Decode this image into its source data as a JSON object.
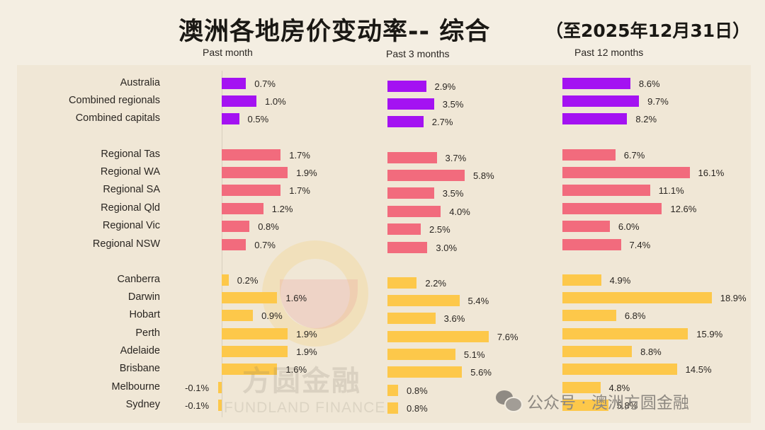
{
  "title": {
    "main": "澳洲各地房价变动率-- 综合",
    "sub": "（至2025年12月31日）"
  },
  "columns": [
    "Past month",
    "Past 3 months",
    "Past 12 months"
  ],
  "colors": {
    "summary": "#a412f2",
    "regional": "#f26b7d",
    "capital": "#fdc84a",
    "background": "#f4eee2",
    "panel": "#f0e7d6"
  },
  "watermark": {
    "cn": "方圆金融",
    "en": "FUNDLAND FINANCE",
    "wechat_label": "公众号 · 澳洲方圆金融"
  },
  "chart_data": {
    "type": "bar",
    "orientation": "horizontal",
    "title": "澳洲各地房价变动率-- 综合 （至2025年12月31日）",
    "categories": [
      "Australia",
      "Combined regionals",
      "Combined capitals",
      "Regional Tas",
      "Regional WA",
      "Regional SA",
      "Regional Qld",
      "Regional Vic",
      "Regional NSW",
      "Canberra",
      "Darwin",
      "Hobart",
      "Perth",
      "Adelaide",
      "Brisbane",
      "Melbourne",
      "Sydney"
    ],
    "groups": [
      "summary",
      "summary",
      "summary",
      "regional",
      "regional",
      "regional",
      "regional",
      "regional",
      "regional",
      "capital",
      "capital",
      "capital",
      "capital",
      "capital",
      "capital",
      "capital",
      "capital"
    ],
    "series": [
      {
        "name": "Past month",
        "values": [
          0.7,
          1.0,
          0.5,
          1.7,
          1.9,
          1.7,
          1.2,
          0.8,
          0.7,
          0.2,
          1.6,
          0.9,
          1.9,
          1.9,
          1.6,
          -0.1,
          -0.1
        ]
      },
      {
        "name": "Past 3 months",
        "values": [
          2.9,
          3.5,
          2.7,
          3.7,
          5.8,
          3.5,
          4.0,
          2.5,
          3.0,
          2.2,
          5.4,
          3.6,
          7.6,
          5.1,
          5.6,
          0.8,
          0.8
        ]
      },
      {
        "name": "Past 12 months",
        "values": [
          8.6,
          9.7,
          8.2,
          6.7,
          16.1,
          11.1,
          12.6,
          6.0,
          7.4,
          4.9,
          18.9,
          6.8,
          15.9,
          8.8,
          14.5,
          4.8,
          5.8
        ]
      }
    ],
    "value_format": "percent_1dp",
    "xlabel": "",
    "ylabel": "",
    "grid": false,
    "legend": "none"
  }
}
